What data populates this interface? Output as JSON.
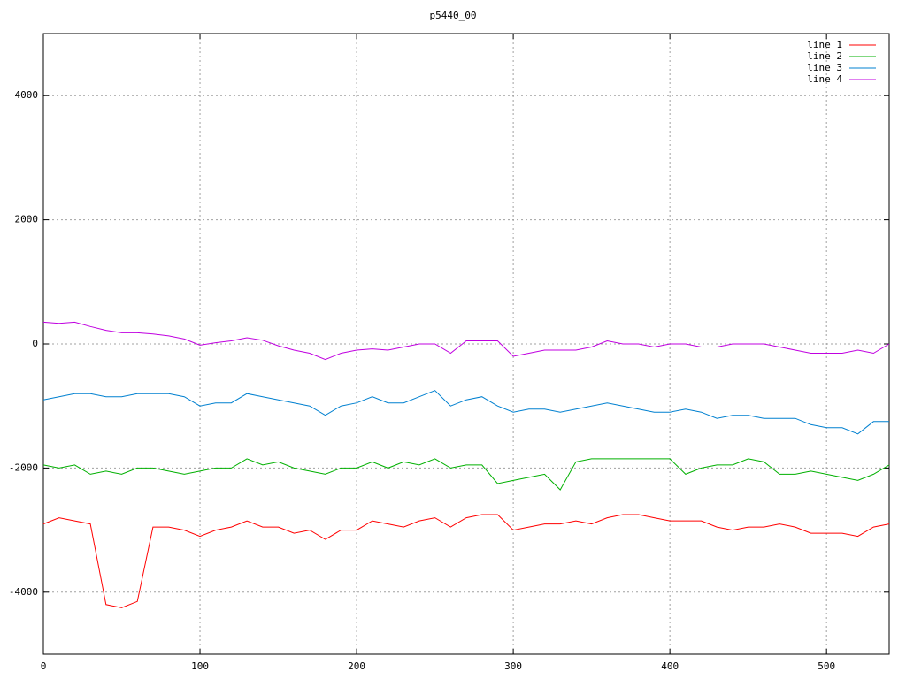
{
  "chart_data": {
    "type": "line",
    "title": "p5440_00",
    "x": [
      0,
      10,
      20,
      30,
      40,
      50,
      60,
      70,
      80,
      90,
      100,
      110,
      120,
      130,
      140,
      150,
      160,
      170,
      180,
      190,
      200,
      210,
      220,
      230,
      240,
      250,
      260,
      270,
      280,
      290,
      300,
      310,
      320,
      330,
      340,
      350,
      360,
      370,
      380,
      390,
      400,
      410,
      420,
      430,
      440,
      450,
      460,
      470,
      480,
      490,
      500,
      510,
      520,
      530,
      540
    ],
    "series": [
      {
        "name": "line 1",
        "color": "#ff0000",
        "values": [
          -2900,
          -2800,
          -2850,
          -2900,
          -4200,
          -4250,
          -4150,
          -2950,
          -2950,
          -3000,
          -3100,
          -3000,
          -2950,
          -2850,
          -2950,
          -2950,
          -3050,
          -3000,
          -3150,
          -3000,
          -3000,
          -2850,
          -2900,
          -2950,
          -2850,
          -2800,
          -2950,
          -2800,
          -2750,
          -2750,
          -3000,
          -2950,
          -2900,
          -2900,
          -2850,
          -2900,
          -2800,
          -2750,
          -2750,
          -2800,
          -2850,
          -2850,
          -2850,
          -2950,
          -3000,
          -2950,
          -2950,
          -2900,
          -2950,
          -3050,
          -3050,
          -3050,
          -3100,
          -2950,
          -2900
        ]
      },
      {
        "name": "line 2",
        "color": "#00b000",
        "values": [
          -1950,
          -2000,
          -1950,
          -2100,
          -2050,
          -2100,
          -2000,
          -2000,
          -2050,
          -2100,
          -2050,
          -2000,
          -2000,
          -1850,
          -1950,
          -1900,
          -2000,
          -2050,
          -2100,
          -2000,
          -2000,
          -1900,
          -2000,
          -1900,
          -1950,
          -1850,
          -2000,
          -1950,
          -1950,
          -2250,
          -2200,
          -2150,
          -2100,
          -2350,
          -1900,
          -1850,
          -1850,
          -1850,
          -1850,
          -1850,
          -1850,
          -2100,
          -2000,
          -1950,
          -1950,
          -1850,
          -1900,
          -2100,
          -2100,
          -2050,
          -2100,
          -2150,
          -2200,
          -2100,
          -1950
        ]
      },
      {
        "name": "line 3",
        "color": "#0080d0",
        "values": [
          -900,
          -850,
          -800,
          -800,
          -850,
          -850,
          -800,
          -800,
          -800,
          -850,
          -1000,
          -950,
          -950,
          -800,
          -850,
          -900,
          -950,
          -1000,
          -1150,
          -1000,
          -950,
          -850,
          -950,
          -950,
          -850,
          -750,
          -1000,
          -900,
          -850,
          -1000,
          -1100,
          -1050,
          -1050,
          -1100,
          -1050,
          -1000,
          -950,
          -1000,
          -1050,
          -1100,
          -1100,
          -1050,
          -1100,
          -1200,
          -1150,
          -1150,
          -1200,
          -1200,
          -1200,
          -1300,
          -1350,
          -1350,
          -1450,
          -1250,
          -1250
        ]
      },
      {
        "name": "line 4",
        "color": "#c000e0",
        "values": [
          350,
          330,
          350,
          280,
          220,
          180,
          180,
          160,
          130,
          80,
          -20,
          20,
          50,
          100,
          60,
          -30,
          -100,
          -150,
          -250,
          -150,
          -100,
          -80,
          -100,
          -50,
          0,
          0,
          -150,
          50,
          50,
          50,
          -200,
          -150,
          -100,
          -100,
          -100,
          -50,
          50,
          0,
          0,
          -50,
          0,
          0,
          -50,
          -50,
          0,
          0,
          0,
          -50,
          -100,
          -150,
          -150,
          -150,
          -100,
          -150,
          0
        ]
      }
    ],
    "xlim": [
      0,
      540
    ],
    "xticks": [
      0,
      100,
      200,
      300,
      400,
      500
    ],
    "ylim": [
      -5000,
      5000
    ],
    "yticks": [
      -4000,
      -2000,
      0,
      2000,
      4000
    ],
    "grid": true,
    "legend": "top right"
  }
}
